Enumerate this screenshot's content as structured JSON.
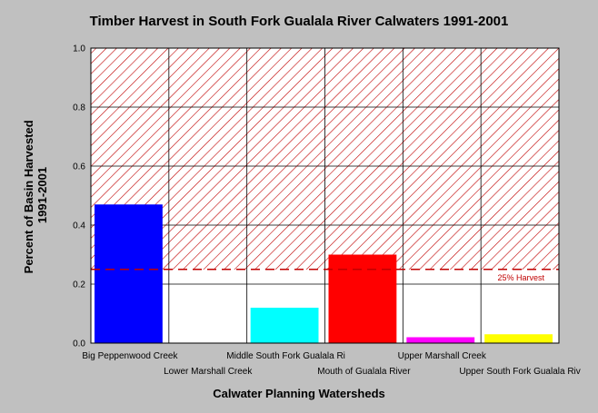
{
  "chart_data": {
    "type": "bar",
    "title": "Timber Harvest in South Fork Gualala River Calwaters 1991-2001",
    "xlabel": "Calwater Planning Watersheds",
    "ylabel": [
      "Percent of Basin Harvested",
      "1991-2001"
    ],
    "ylim": [
      0,
      1.0
    ],
    "yticks": [
      "0.0",
      "0.2",
      "0.4",
      "0.6",
      "0.8",
      "1.0"
    ],
    "grid": true,
    "categories": [
      "Big Peppenwood Creek",
      "Lower Marshall Creek",
      "Middle South Fork Gualala Ri",
      "Mouth of Gualala River",
      "Upper Marshall Creek",
      "Upper South Fork Gualala Riv"
    ],
    "values": [
      0.47,
      0,
      0.12,
      0.3,
      0.02,
      0.03
    ],
    "colors": [
      "#0000ff",
      "#ffffff",
      "#00ffff",
      "#ff0000",
      "#ff00ff",
      "#ffff00"
    ],
    "threshold": {
      "value": 0.25,
      "label": "25% Harvest",
      "color": "#c00000"
    }
  }
}
